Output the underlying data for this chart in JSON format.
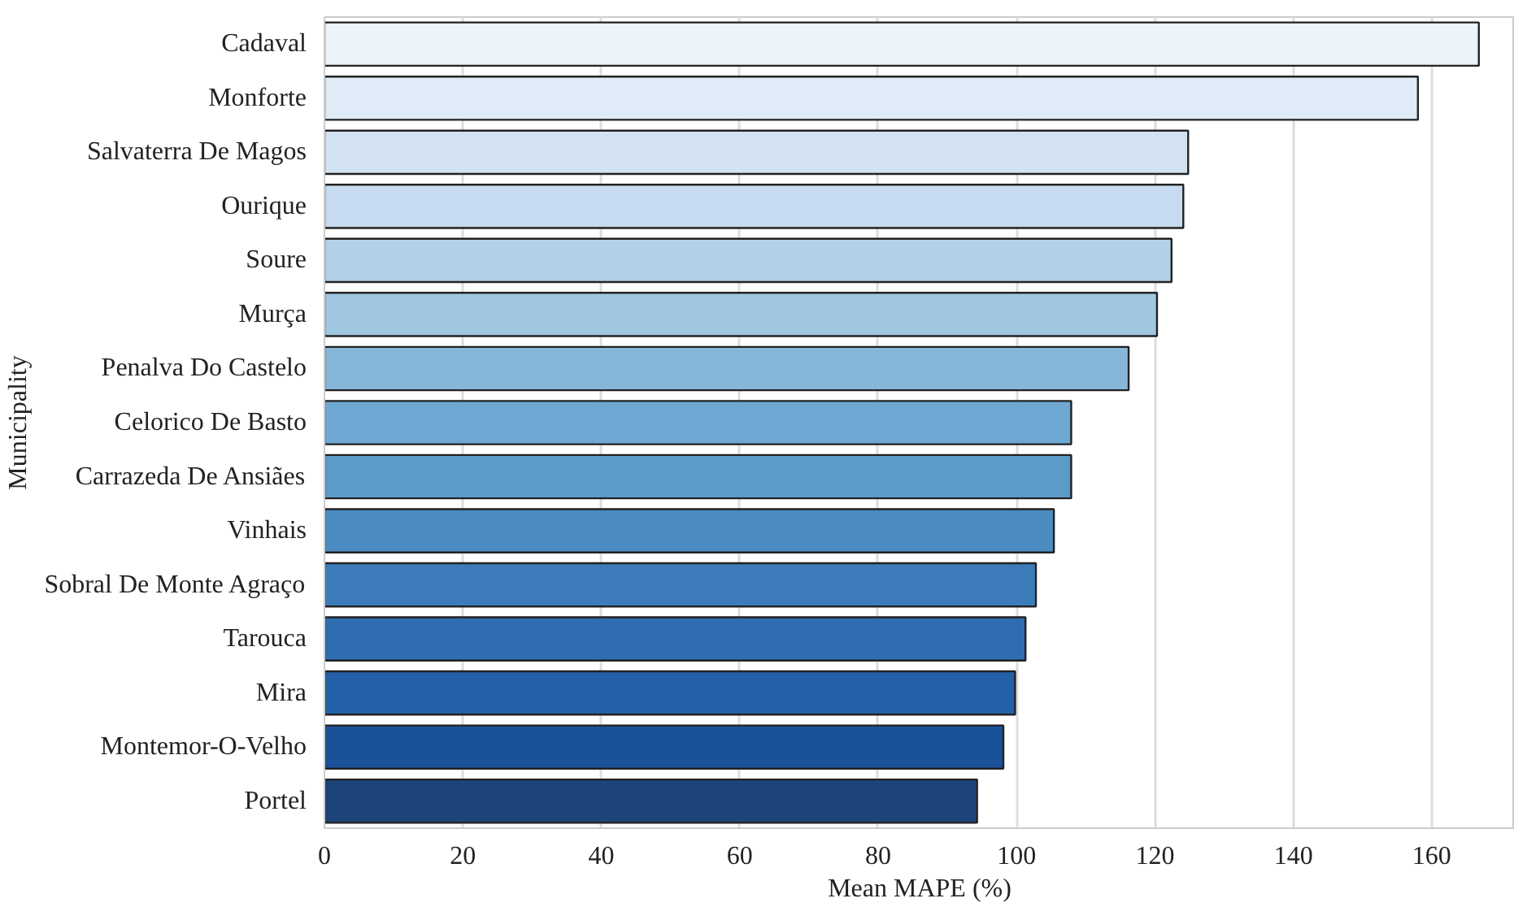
{
  "chart_data": {
    "type": "bar",
    "orientation": "horizontal",
    "xlabel": "Mean MAPE (%)",
    "ylabel": "Municipality",
    "categories": [
      "Cadaval",
      "Monforte",
      "Salvaterra De Magos",
      "Ourique",
      "Soure",
      "Murça",
      "Penalva Do Castelo",
      "Celorico De Basto",
      "Carrazeda De Ansiães",
      "Vinhais",
      "Sobral De Monte Agraço",
      "Tarouca",
      "Mira",
      "Montemor-O-Velho",
      "Portel"
    ],
    "values": [
      166.8,
      158.0,
      124.8,
      124.1,
      122.4,
      120.3,
      116.2,
      107.9,
      107.9,
      105.4,
      102.8,
      101.3,
      99.8,
      98.1,
      94.3
    ],
    "colors": [
      "#ebf3fb",
      "#dfebf6",
      "#d2e2f1",
      "#c6dbef",
      "#b2d1e6",
      "#9fc7df",
      "#86b7d9",
      "#6ea8d3",
      "#5b9bca",
      "#4a8bc2",
      "#3c7cba",
      "#2f6db0",
      "#2460a7",
      "#1a5299",
      "#1c4479"
    ],
    "xlim": [
      0,
      172
    ],
    "xticks": [
      0,
      20,
      40,
      60,
      80,
      100,
      120,
      140,
      160
    ],
    "grid": "x"
  }
}
